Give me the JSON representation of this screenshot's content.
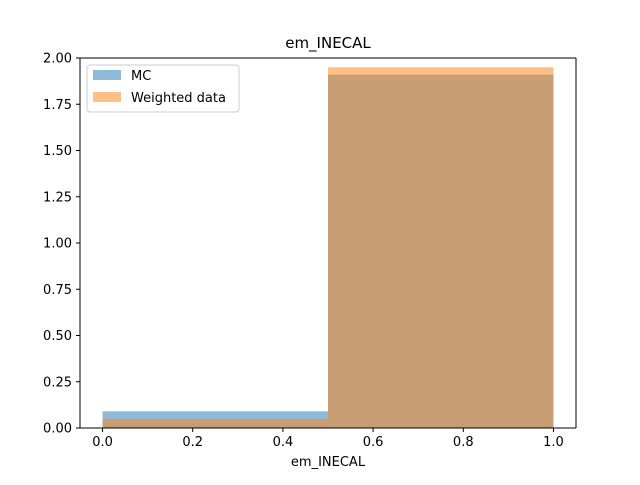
{
  "chart_data": {
    "type": "bar",
    "title": "em_INECAL",
    "xlabel": "em_INECAL",
    "ylabel": "",
    "xlim": [
      -0.05,
      1.05
    ],
    "ylim": [
      0,
      2.0
    ],
    "bin_edges": [
      0.0,
      0.5,
      1.0
    ],
    "x_ticks": [
      0.0,
      0.2,
      0.4,
      0.6,
      0.8,
      1.0
    ],
    "x_tick_labels": [
      "0.0",
      "0.2",
      "0.4",
      "0.6",
      "0.8",
      "1.0"
    ],
    "y_ticks": [
      0.0,
      0.25,
      0.5,
      0.75,
      1.0,
      1.25,
      1.5,
      1.75,
      2.0
    ],
    "y_tick_labels": [
      "0.00",
      "0.25",
      "0.50",
      "0.75",
      "1.00",
      "1.25",
      "1.50",
      "1.75",
      "2.00"
    ],
    "grid": false,
    "legend_position": "top-left",
    "series": [
      {
        "name": "MC",
        "values": [
          0.09,
          1.91
        ],
        "color": "#1f77b4",
        "alpha": 0.5
      },
      {
        "name": "Weighted data",
        "values": [
          0.05,
          1.95
        ],
        "color": "#ff7f0e",
        "alpha": 0.5
      }
    ]
  }
}
